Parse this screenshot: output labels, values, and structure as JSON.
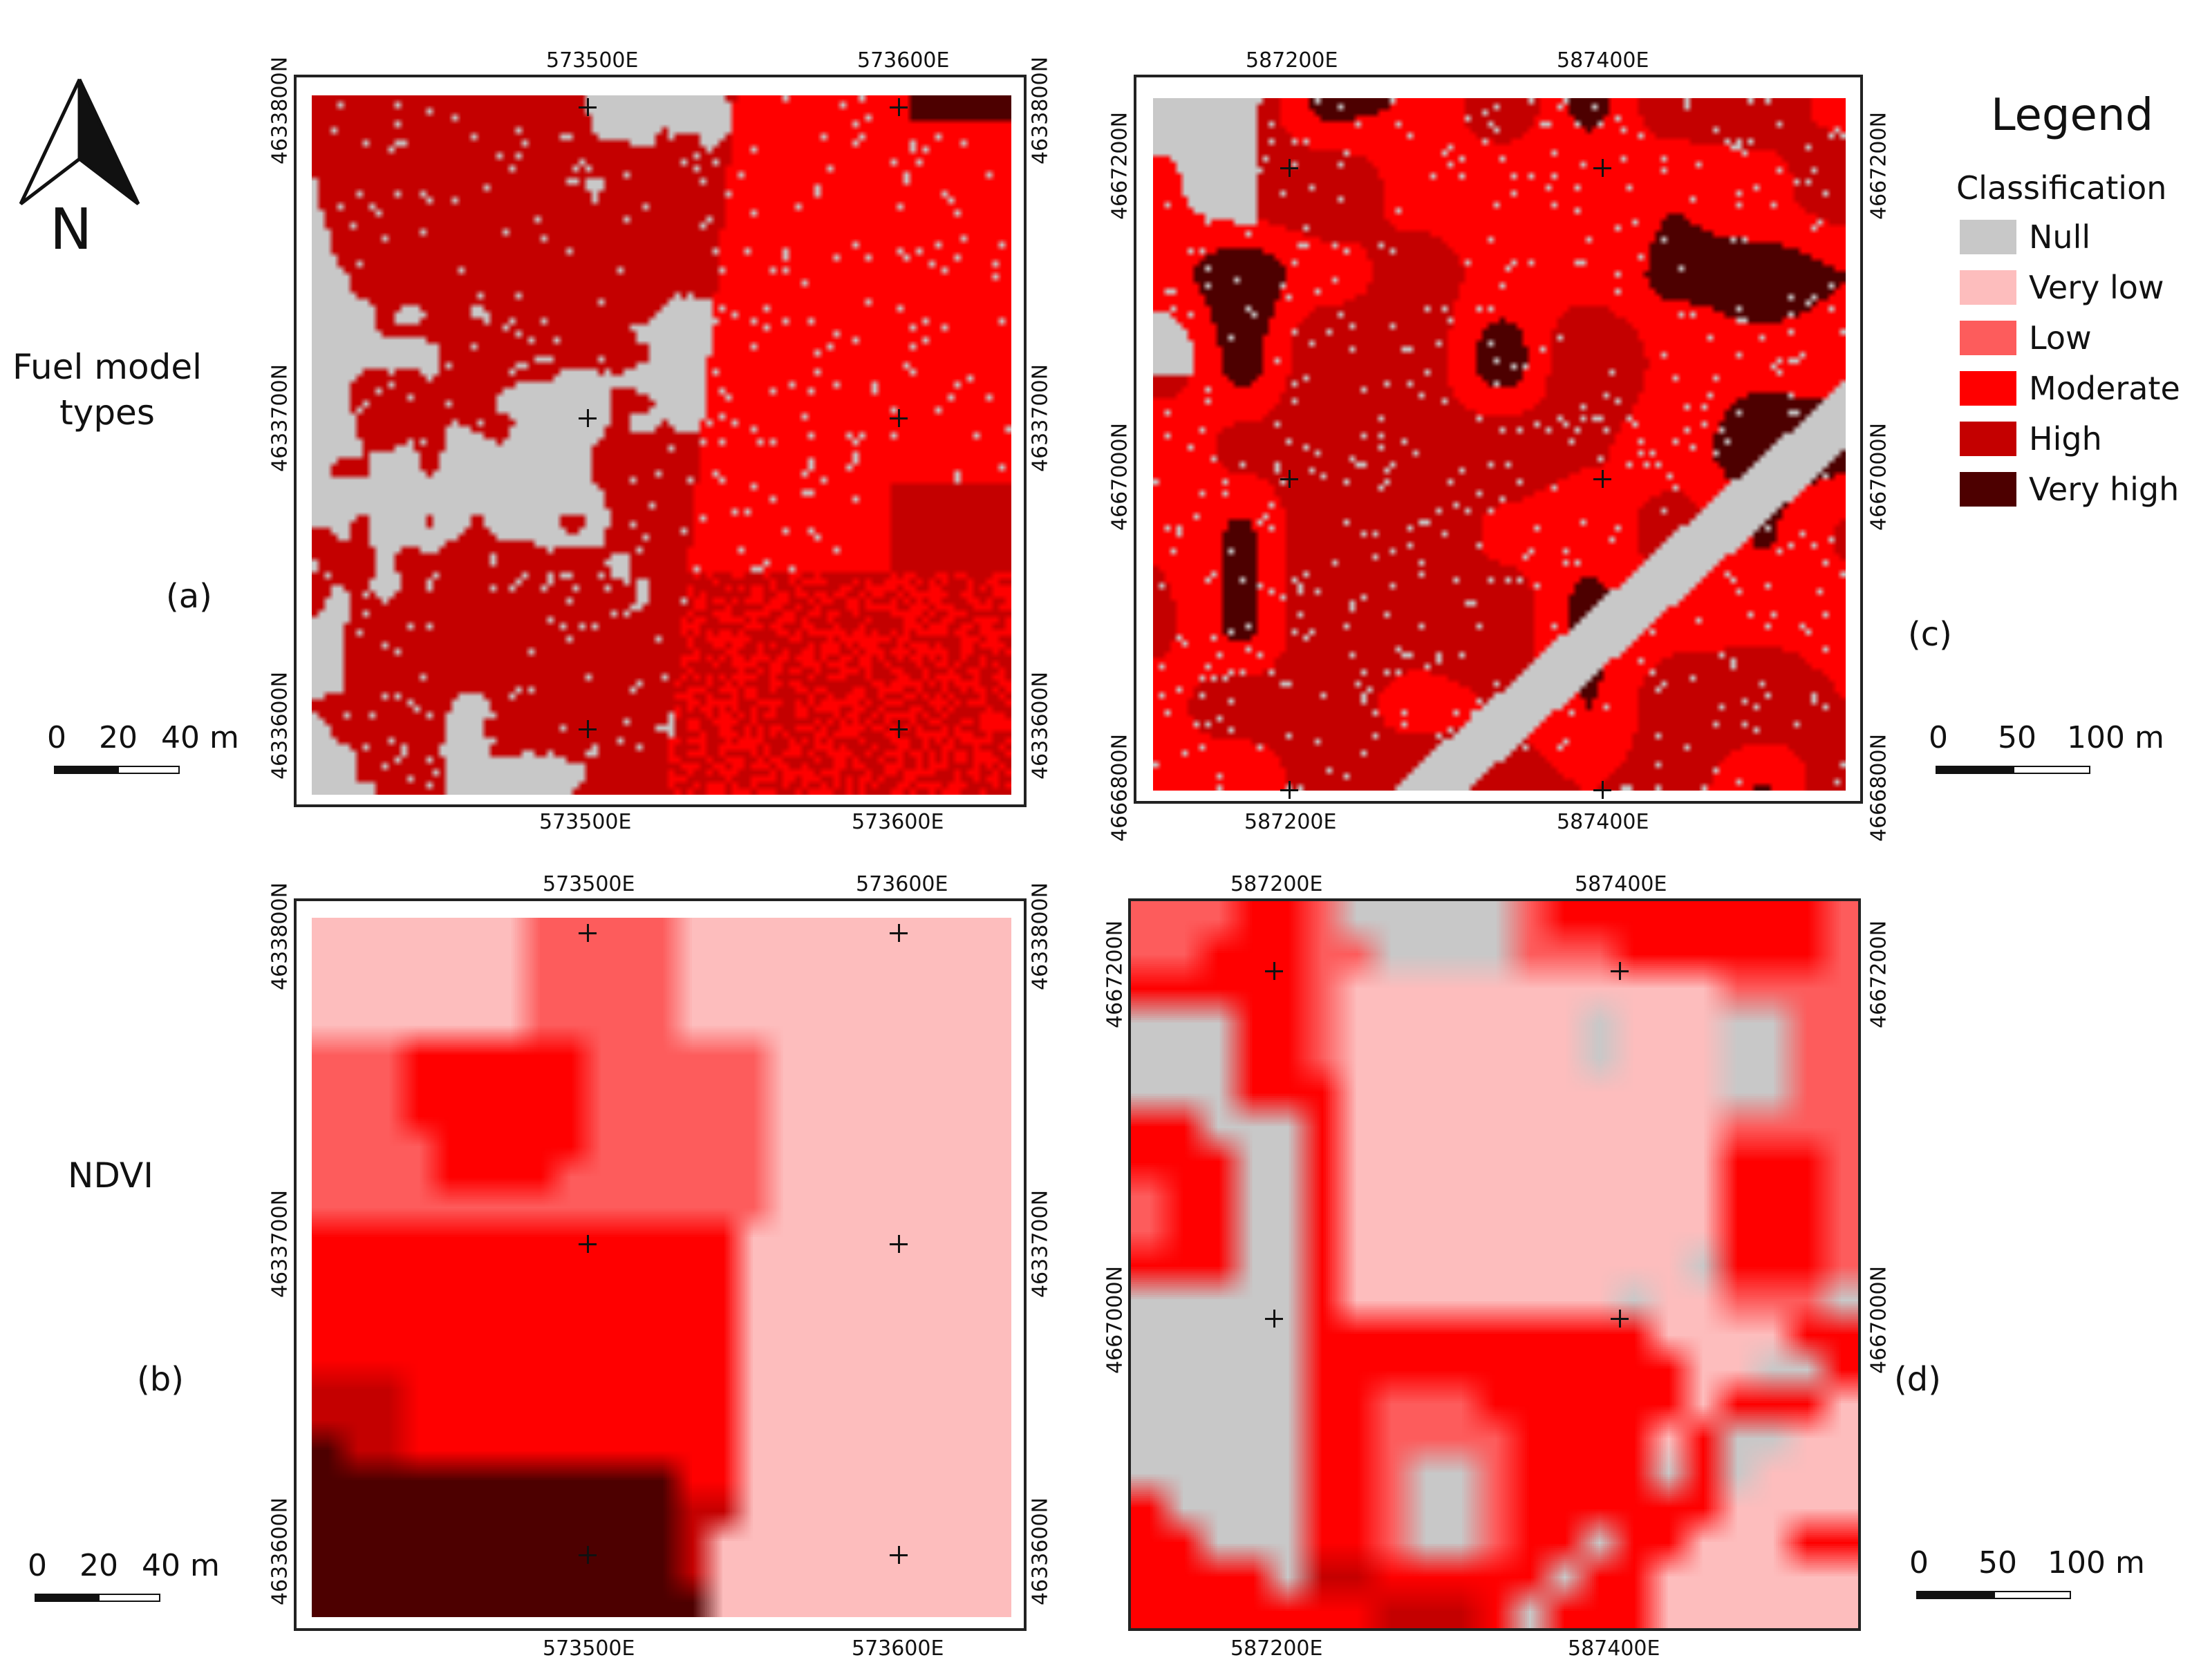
{
  "classes": [
    {
      "name": "Null",
      "color": "#c8c8c8"
    },
    {
      "name": "Very low",
      "color": "#fdbdbd"
    },
    {
      "name": "Low",
      "color": "#fd5c5c"
    },
    {
      "name": "Moderate",
      "color": "#ff0000"
    },
    {
      "name": "High",
      "color": "#c40000"
    },
    {
      "name": "Very high",
      "color": "#4d0000"
    }
  ],
  "legend": {
    "title": "Legend",
    "subtitle": "Classification"
  },
  "north_arrow": {
    "label": "N"
  },
  "rows": {
    "top": "Fuel model\ntypes",
    "bottom": "NDVI"
  },
  "panel_letters": {
    "a": "(a)",
    "b": "(b)",
    "c": "(c)",
    "d": "(d)"
  },
  "scalebars": {
    "left_top": {
      "labels": [
        "0",
        "20",
        "40 m"
      ]
    },
    "left_bottom": {
      "labels": [
        "0",
        "20",
        "40 m"
      ]
    },
    "right_top": {
      "labels": [
        "0",
        "50",
        "100 m"
      ]
    },
    "right_bottom": {
      "labels": [
        "0",
        "50",
        "100 m"
      ]
    }
  },
  "panels": {
    "a": {
      "easting": [
        "573500E",
        "573600E"
      ],
      "northing": [
        "4633800N",
        "4633700N",
        "4633600N"
      ]
    },
    "b": {
      "easting": [
        "573500E",
        "573600E"
      ],
      "northing": [
        "4633800N",
        "4633700N",
        "4633600N"
      ]
    },
    "c": {
      "easting": [
        "587200E",
        "587400E"
      ],
      "northing": [
        "4667200N",
        "4667000N",
        "4666800N"
      ]
    },
    "d": {
      "easting": [
        "587200E",
        "587400E"
      ],
      "northing": [
        "4667200N",
        "4667000N"
      ]
    }
  }
}
